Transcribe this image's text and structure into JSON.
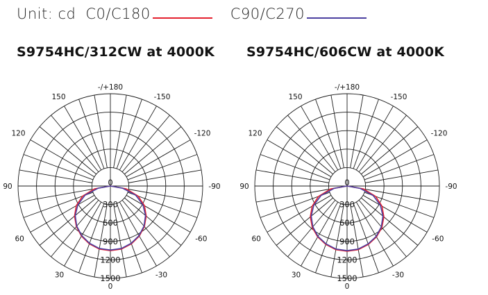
{
  "legend": {
    "unit": "Unit: cd",
    "series": [
      {
        "label": "C0/C180",
        "color": "#e4202e"
      },
      {
        "label": "C90/C270",
        "color": "#4b3fa0"
      }
    ]
  },
  "charts": [
    {
      "title": "S9754HC/312CW at 4000K"
    },
    {
      "title": "S9754HC/606CW at 4000K"
    }
  ],
  "chart_data": [
    {
      "type": "polar",
      "title": "S9754HC/312CW at 4000K",
      "unit": "cd",
      "radial_ticks": [
        0,
        300,
        600,
        900,
        1200,
        1500
      ],
      "rmax": 1500,
      "angle_ticks": [
        "-/+180",
        "-150",
        "150",
        "-120",
        "120",
        "-90",
        "90",
        "-60",
        "60",
        "-30",
        "30",
        "0"
      ],
      "angles": [
        0,
        10,
        20,
        30,
        40,
        50,
        60,
        70,
        80,
        90
      ],
      "series": [
        {
          "name": "C0/C180",
          "color": "#e4202e",
          "values": [
            1050,
            1040,
            1000,
            940,
            860,
            760,
            640,
            480,
            260,
            0
          ]
        },
        {
          "name": "C90/C270",
          "color": "#4b3fa0",
          "values": [
            1040,
            1030,
            990,
            930,
            850,
            745,
            610,
            440,
            200,
            0
          ]
        }
      ]
    },
    {
      "type": "polar",
      "title": "S9754HC/606CW at 4000K",
      "unit": "cd",
      "radial_ticks": [
        0,
        300,
        600,
        900,
        1200,
        1500
      ],
      "rmax": 1500,
      "angle_ticks": [
        "-/+180",
        "-150",
        "150",
        "-120",
        "120",
        "-90",
        "90",
        "-60",
        "60",
        "-30",
        "30",
        "0"
      ],
      "angles": [
        0,
        10,
        20,
        30,
        40,
        50,
        60,
        70,
        80,
        90
      ],
      "series": [
        {
          "name": "C0/C180",
          "color": "#e4202e",
          "values": [
            1060,
            1050,
            1010,
            955,
            880,
            780,
            655,
            495,
            270,
            0
          ]
        },
        {
          "name": "C90/C270",
          "color": "#4b3fa0",
          "values": [
            1050,
            1040,
            1000,
            945,
            865,
            760,
            625,
            450,
            210,
            0
          ]
        }
      ]
    }
  ]
}
